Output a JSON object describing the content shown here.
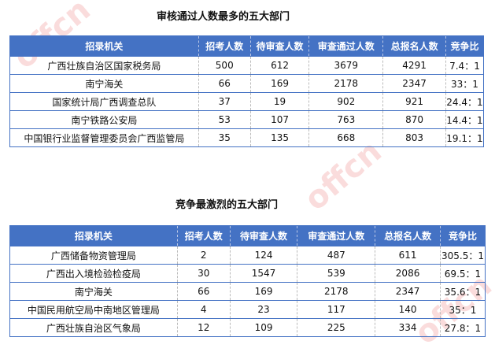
{
  "headers": [
    "招录机关",
    "招考人数",
    "待审查人数",
    "审查通过人数",
    "总报名人数",
    "竞争比"
  ],
  "table1": {
    "title": "审核通过人数最多的五大部门",
    "rows": [
      [
        "广西壮族自治区国家税务局",
        "500",
        "612",
        "3679",
        "4291",
        "7.4：1"
      ],
      [
        "南宁海关",
        "66",
        "169",
        "2178",
        "2347",
        "33：1"
      ],
      [
        "国家统计局广西调查总队",
        "37",
        "19",
        "902",
        "921",
        "24.4：1"
      ],
      [
        "南宁铁路公安局",
        "53",
        "107",
        "763",
        "870",
        "14.4：1"
      ],
      [
        "中国银行业监督管理委员会广西监管局",
        "35",
        "135",
        "668",
        "803",
        "19.1：1"
      ]
    ]
  },
  "table2": {
    "title": "竞争最激烈的五大部门",
    "rows": [
      [
        "广西储备物资管理局",
        "2",
        "124",
        "487",
        "611",
        "305.5：1"
      ],
      [
        "广西出入境检验检疫局",
        "30",
        "1547",
        "539",
        "2086",
        "69.5：1"
      ],
      [
        "南宁海关",
        "66",
        "169",
        "2178",
        "2347",
        "35.6：1"
      ],
      [
        "中国民用航空局中南地区管理局",
        "4",
        "23",
        "117",
        "140",
        "35：1"
      ],
      [
        "广西壮族自治区气象局",
        "12",
        "109",
        "225",
        "334",
        "27.8：1"
      ]
    ]
  },
  "colors": {
    "header": "#4472c4"
  }
}
